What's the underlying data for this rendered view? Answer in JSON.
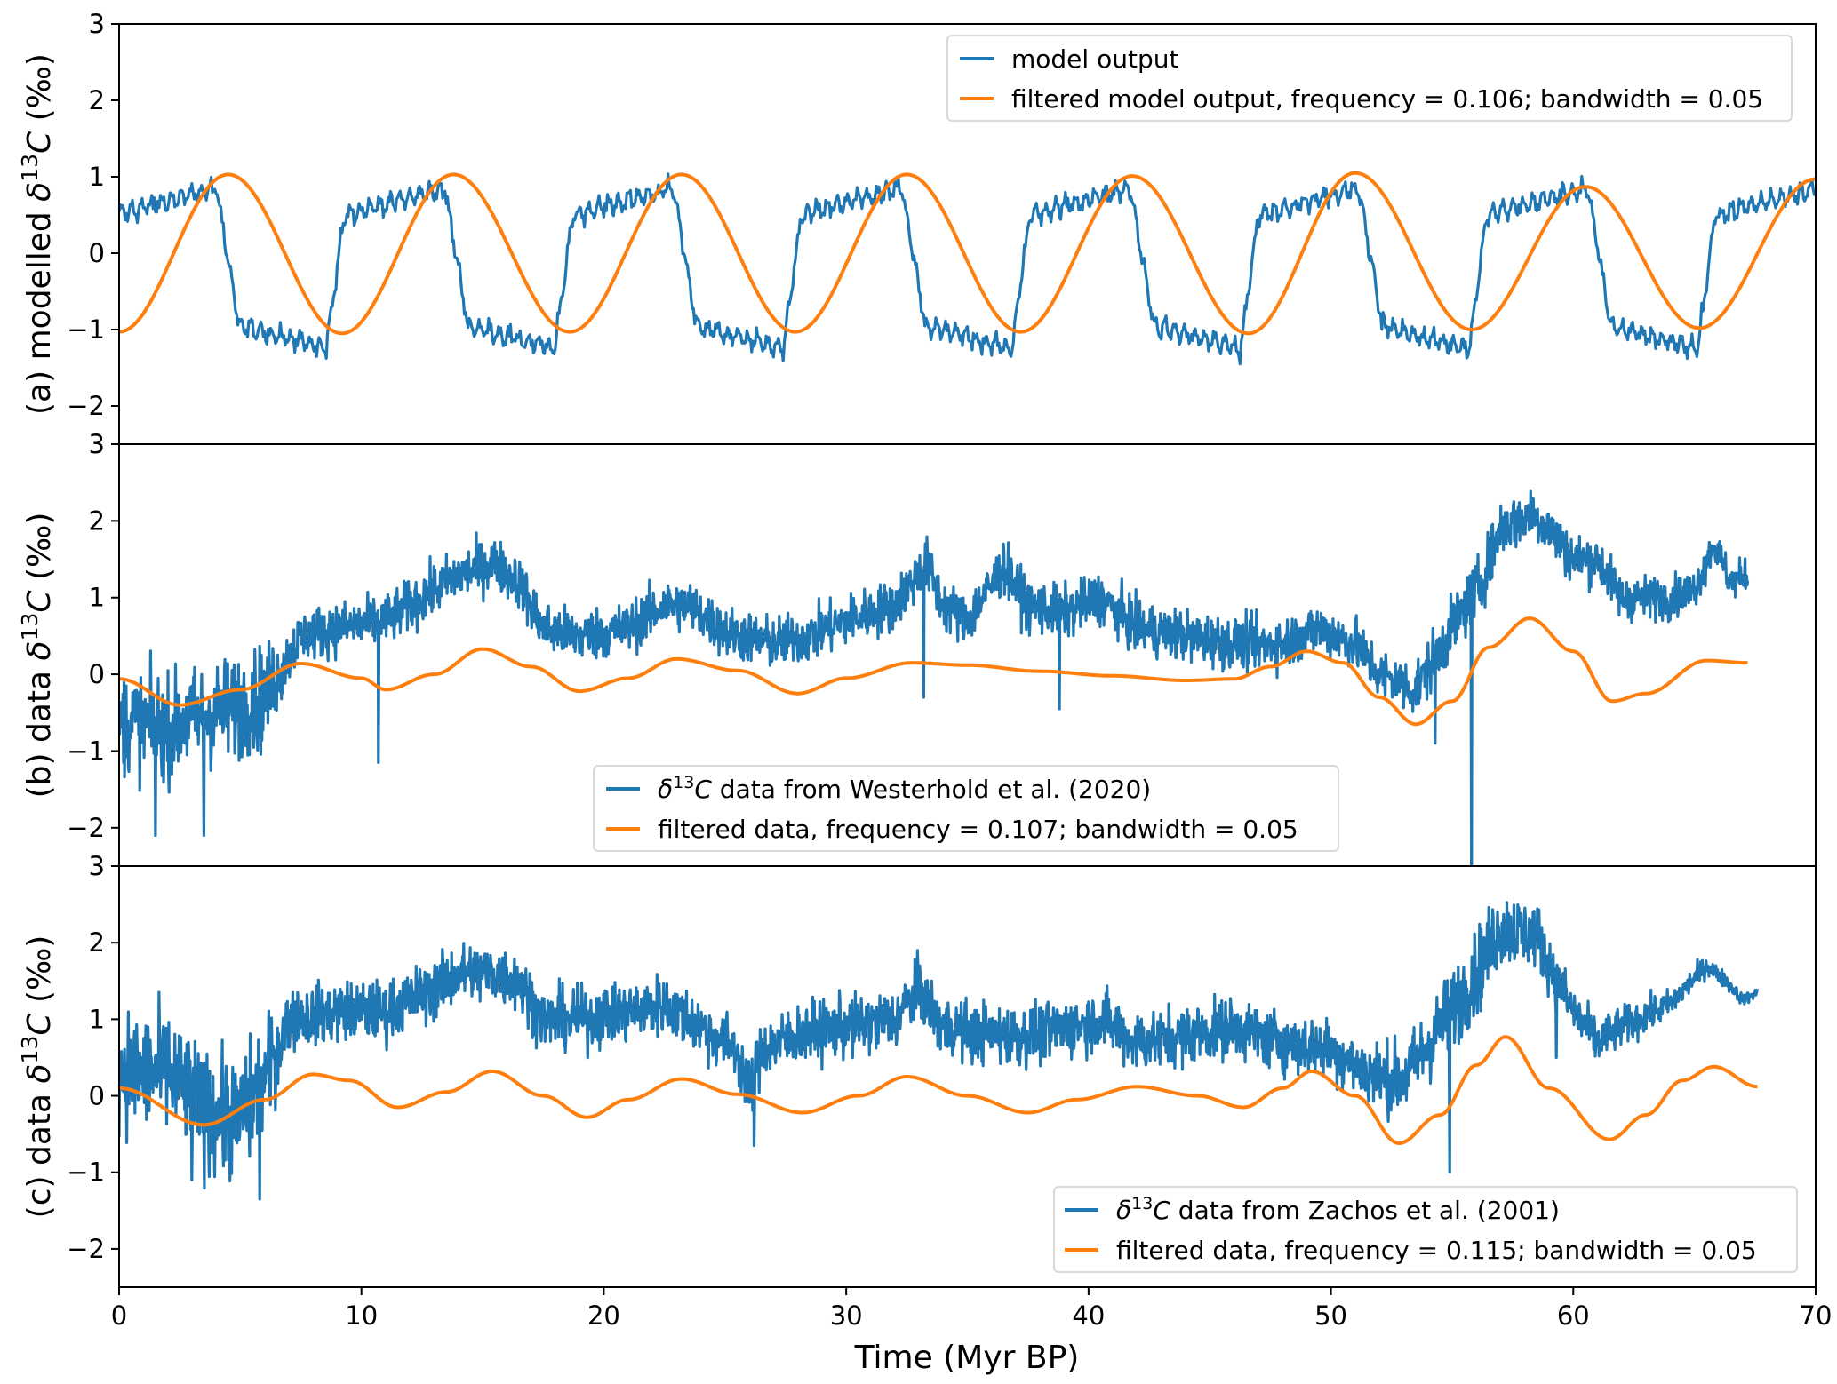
{
  "chart_data": {
    "type": "line",
    "xlabel": "Time (Myr BP)",
    "xlim": [
      0,
      70
    ],
    "xticks": [
      0,
      10,
      20,
      30,
      40,
      50,
      60,
      70
    ],
    "shared_x": true,
    "panels": [
      {
        "id": "a",
        "ylabel": "(a) modelled δ¹³C (‰)",
        "ylabel_parts": {
          "prefix": "(a) modelled ",
          "delta": "δ",
          "sup": "13",
          "c": "C",
          "suffix": " (‰)"
        },
        "ylim": [
          -2.5,
          3
        ],
        "yticks": [
          -2,
          -1,
          0,
          1,
          2,
          3
        ],
        "legend_position": "top-right",
        "series": [
          {
            "name": "model output",
            "color": "#1f77b4",
            "kind": "model",
            "x_range": [
              0,
              70
            ],
            "period_myr": 9.43,
            "low": -1.3,
            "high": 0.85,
            "notes": "square-ish wave with small high-frequency wiggles, amplitude about -1.5 to 1.05"
          },
          {
            "name": "filtered model output, frequency = 0.106; bandwidth = 0.05",
            "color": "#ff7f0e",
            "kind": "sine",
            "x_range": [
              0,
              70
            ],
            "frequency": 0.106,
            "peaks": [
              [
                4.5,
                1.03
              ],
              [
                13.8,
                1.03
              ],
              [
                23.2,
                1.03
              ],
              [
                32.5,
                1.03
              ],
              [
                41.8,
                1.01
              ],
              [
                51.0,
                1.05
              ],
              [
                60.5,
                0.87
              ]
            ],
            "troughs": [
              [
                0,
                -1.03
              ],
              [
                9.2,
                -1.05
              ],
              [
                18.6,
                -1.03
              ],
              [
                27.9,
                -1.03
              ],
              [
                37.2,
                -1.03
              ],
              [
                46.6,
                -1.05
              ],
              [
                55.8,
                -1.0
              ],
              [
                65.2,
                -0.98
              ]
            ],
            "end_value": 0.97
          }
        ]
      },
      {
        "id": "b",
        "ylabel": "(b) data δ¹³C (‰)",
        "ylabel_parts": {
          "prefix": "(b) data ",
          "delta": "δ",
          "sup": "13",
          "c": "C",
          "suffix": " (‰)"
        },
        "ylim": [
          -2.5,
          3
        ],
        "yticks": [
          -2,
          -1,
          0,
          1,
          2,
          3
        ],
        "legend_position": "lower-center",
        "series": [
          {
            "name": "δ¹³C data from Westerhold et al. (2020)",
            "legend_parts": {
              "delta": "δ",
              "sup": "13",
              "rest": "C data from Westerhold et al. (2020)"
            },
            "color": "#1f77b4",
            "kind": "noisy",
            "x_range": [
              0,
              67.2
            ],
            "trend": [
              [
                0,
                -0.6
              ],
              [
                2,
                -0.7
              ],
              [
                4,
                -0.5
              ],
              [
                6,
                -0.3
              ],
              [
                7.5,
                0.5
              ],
              [
                9,
                0.6
              ],
              [
                11,
                0.7
              ],
              [
                12.5,
                1.0
              ],
              [
                14,
                1.3
              ],
              [
                15.5,
                1.45
              ],
              [
                16.5,
                1.2
              ],
              [
                17.5,
                0.6
              ],
              [
                19,
                0.5
              ],
              [
                21,
                0.6
              ],
              [
                22.5,
                0.9
              ],
              [
                23.5,
                0.9
              ],
              [
                25,
                0.55
              ],
              [
                27,
                0.4
              ],
              [
                28.5,
                0.5
              ],
              [
                30,
                0.7
              ],
              [
                32,
                0.9
              ],
              [
                33.3,
                1.45
              ],
              [
                34,
                0.9
              ],
              [
                35,
                0.7
              ],
              [
                36.5,
                1.4
              ],
              [
                37.5,
                0.9
              ],
              [
                39,
                0.8
              ],
              [
                40.5,
                1.0
              ],
              [
                42,
                0.6
              ],
              [
                44,
                0.5
              ],
              [
                46,
                0.4
              ],
              [
                48,
                0.4
              ],
              [
                49.5,
                0.6
              ],
              [
                51,
                0.4
              ],
              [
                52,
                0.0
              ],
              [
                53.5,
                -0.2
              ],
              [
                55,
                0.6
              ],
              [
                56.2,
                1.2
              ],
              [
                57,
                1.9
              ],
              [
                58.3,
                2.1
              ],
              [
                59,
                1.9
              ],
              [
                60,
                1.5
              ],
              [
                61,
                1.5
              ],
              [
                62,
                1.0
              ],
              [
                64,
                1.0
              ],
              [
                65,
                1.1
              ],
              [
                65.8,
                1.7
              ],
              [
                66.5,
                1.2
              ],
              [
                67.2,
                1.3
              ]
            ],
            "noise": [
              [
                0,
                0.6
              ],
              [
                6,
                0.6
              ],
              [
                7,
                0.3
              ],
              [
                52,
                0.3
              ],
              [
                55,
                0.35
              ],
              [
                67.2,
                0.2
              ]
            ],
            "spikes": [
              [
                10.7,
                -1.15
              ],
              [
                55.8,
                -2.95
              ],
              [
                38.8,
                -0.45
              ],
              [
                54.3,
                -0.9
              ],
              [
                3.5,
                -2.1
              ],
              [
                1.5,
                -2.1
              ],
              [
                33.2,
                -0.3
              ]
            ]
          },
          {
            "name": "filtered data, frequency = 0.107; bandwidth = 0.05",
            "color": "#ff7f0e",
            "kind": "curve",
            "points": [
              [
                0,
                -0.06
              ],
              [
                2.5,
                -0.4
              ],
              [
                5,
                -0.2
              ],
              [
                7.5,
                0.14
              ],
              [
                10,
                -0.05
              ],
              [
                11,
                -0.2
              ],
              [
                13,
                0.0
              ],
              [
                15,
                0.33
              ],
              [
                17,
                0.1
              ],
              [
                19,
                -0.22
              ],
              [
                21,
                -0.05
              ],
              [
                23,
                0.2
              ],
              [
                25.5,
                0.05
              ],
              [
                28,
                -0.25
              ],
              [
                30,
                -0.05
              ],
              [
                32.7,
                0.15
              ],
              [
                35,
                0.12
              ],
              [
                38,
                0.04
              ],
              [
                41,
                -0.02
              ],
              [
                44,
                -0.08
              ],
              [
                46,
                -0.06
              ],
              [
                47.5,
                0.1
              ],
              [
                49,
                0.3
              ],
              [
                50.5,
                0.15
              ],
              [
                52,
                -0.3
              ],
              [
                53.5,
                -0.65
              ],
              [
                55,
                -0.35
              ],
              [
                56.5,
                0.35
              ],
              [
                58.2,
                0.73
              ],
              [
                60,
                0.3
              ],
              [
                61.6,
                -0.35
              ],
              [
                63,
                -0.25
              ],
              [
                65.5,
                0.18
              ],
              [
                67.2,
                0.15
              ]
            ]
          }
        ]
      },
      {
        "id": "c",
        "ylabel": "(c) data δ¹³C (‰)",
        "ylabel_parts": {
          "prefix": "(c) data ",
          "delta": "δ",
          "sup": "13",
          "c": "C",
          "suffix": " (‰)"
        },
        "ylim": [
          -2.5,
          3
        ],
        "yticks": [
          -2,
          -1,
          0,
          1,
          2,
          3
        ],
        "legend_position": "lower-right",
        "series": [
          {
            "name": "δ¹³C data from Zachos et al. (2001)",
            "legend_parts": {
              "delta": "δ",
              "sup": "13",
              "rest": "C data from Zachos et al. (2001)"
            },
            "color": "#1f77b4",
            "kind": "noisy",
            "x_range": [
              0,
              67.6
            ],
            "trend": [
              [
                0,
                0.3
              ],
              [
                2,
                0.3
              ],
              [
                3.5,
                -0.2
              ],
              [
                5,
                -0.3
              ],
              [
                6,
                0.2
              ],
              [
                7,
                1.0
              ],
              [
                9,
                1.1
              ],
              [
                11,
                1.1
              ],
              [
                13,
                1.4
              ],
              [
                14,
                1.6
              ],
              [
                15.5,
                1.6
              ],
              [
                16.5,
                1.5
              ],
              [
                17.5,
                1.0
              ],
              [
                19,
                1.0
              ],
              [
                21,
                1.1
              ],
              [
                22.5,
                1.2
              ],
              [
                24,
                0.9
              ],
              [
                25.5,
                0.6
              ],
              [
                26,
                0.0
              ],
              [
                26.5,
                0.6
              ],
              [
                28,
                0.8
              ],
              [
                30,
                0.9
              ],
              [
                32,
                1.0
              ],
              [
                33,
                1.4
              ],
              [
                34,
                0.9
              ],
              [
                36,
                0.8
              ],
              [
                38,
                0.8
              ],
              [
                40.5,
                1.0
              ],
              [
                42,
                0.7
              ],
              [
                44,
                0.8
              ],
              [
                46,
                0.9
              ],
              [
                48,
                0.7
              ],
              [
                50,
                0.6
              ],
              [
                51.5,
                0.3
              ],
              [
                53,
                0.2
              ],
              [
                54.5,
                0.9
              ],
              [
                56,
                1.6
              ],
              [
                57,
                2.2
              ],
              [
                58.5,
                2.1
              ],
              [
                59.2,
                1.6
              ],
              [
                60,
                1.1
              ],
              [
                61,
                0.7
              ],
              [
                62,
                0.9
              ],
              [
                64,
                1.2
              ],
              [
                65.5,
                1.7
              ],
              [
                66.3,
                1.5
              ],
              [
                67,
                1.25
              ],
              [
                67.6,
                1.35
              ]
            ],
            "noise": [
              [
                0,
                0.7
              ],
              [
                6,
                0.7
              ],
              [
                7,
                0.35
              ],
              [
                50,
                0.35
              ],
              [
                56,
                0.5
              ],
              [
                60,
                0.3
              ],
              [
                67.6,
                0.05
              ]
            ],
            "spikes": [
              [
                5.8,
                -1.35
              ],
              [
                54.9,
                -1.0
              ],
              [
                26.2,
                -0.65
              ],
              [
                59.3,
                0.5
              ],
              [
                3.0,
                -1.1
              ]
            ]
          },
          {
            "name": "filtered data, frequency = 0.115; bandwidth = 0.05",
            "color": "#ff7f0e",
            "kind": "curve",
            "points": [
              [
                0,
                0.1
              ],
              [
                3.5,
                -0.38
              ],
              [
                6,
                -0.05
              ],
              [
                8,
                0.28
              ],
              [
                9.5,
                0.2
              ],
              [
                11.5,
                -0.15
              ],
              [
                13.5,
                0.05
              ],
              [
                15.4,
                0.32
              ],
              [
                17.5,
                0.0
              ],
              [
                19.3,
                -0.28
              ],
              [
                21,
                -0.05
              ],
              [
                23.2,
                0.22
              ],
              [
                25.5,
                0.02
              ],
              [
                28.2,
                -0.22
              ],
              [
                30.5,
                0.0
              ],
              [
                32.5,
                0.25
              ],
              [
                35,
                0.0
              ],
              [
                37.5,
                -0.22
              ],
              [
                39.5,
                -0.05
              ],
              [
                42,
                0.12
              ],
              [
                44.5,
                0.0
              ],
              [
                46.4,
                -0.15
              ],
              [
                48,
                0.1
              ],
              [
                49.2,
                0.32
              ],
              [
                51,
                0.0
              ],
              [
                52.8,
                -0.62
              ],
              [
                54.5,
                -0.25
              ],
              [
                56,
                0.4
              ],
              [
                57.2,
                0.77
              ],
              [
                59,
                0.1
              ],
              [
                61.5,
                -0.57
              ],
              [
                63,
                -0.25
              ],
              [
                64.5,
                0.2
              ],
              [
                65.8,
                0.38
              ],
              [
                67.6,
                0.12
              ]
            ]
          }
        ]
      }
    ]
  }
}
